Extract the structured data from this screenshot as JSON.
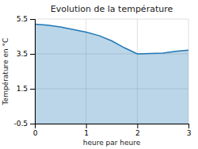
{
  "chart_data": {
    "type": "area",
    "title": "Evolution de la température",
    "xlabel": "heure par heure",
    "ylabel": "Température en °C",
    "x": [
      0,
      0.25,
      0.5,
      0.75,
      1.0,
      1.25,
      1.5,
      1.75,
      2.0,
      2.25,
      2.5,
      2.75,
      3.0
    ],
    "values": [
      5.2,
      5.15,
      5.05,
      4.9,
      4.75,
      4.55,
      4.25,
      3.85,
      3.5,
      3.52,
      3.55,
      3.65,
      3.72
    ],
    "xlim": [
      0,
      3
    ],
    "ylim": [
      -0.5,
      5.5
    ],
    "xticks": [
      0,
      1,
      2,
      3
    ],
    "yticks": [
      -0.5,
      1.5,
      3.5,
      5.5
    ],
    "grid": true
  }
}
